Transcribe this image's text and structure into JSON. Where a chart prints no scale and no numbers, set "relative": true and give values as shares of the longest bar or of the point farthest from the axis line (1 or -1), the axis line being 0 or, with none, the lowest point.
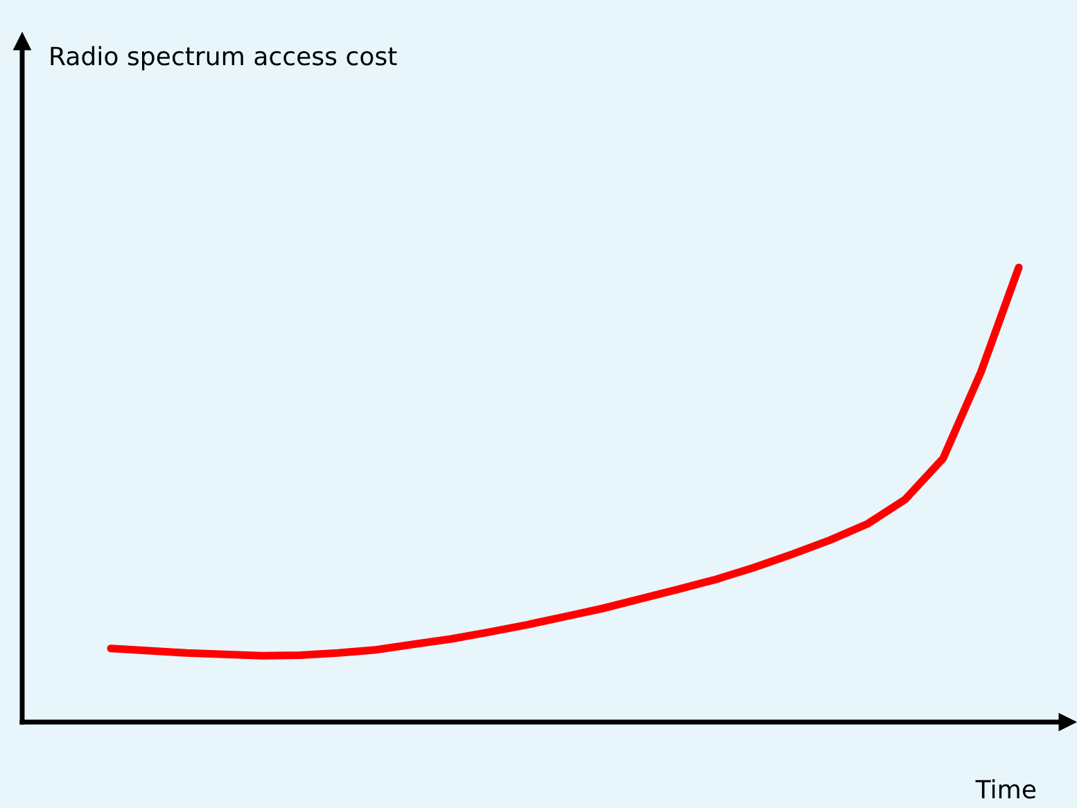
{
  "chart_data": {
    "type": "line",
    "relative": true,
    "xlabel": "Time",
    "annotations": [
      "Radio spectrum access cost"
    ],
    "categories": [
      null,
      null,
      null,
      null,
      null,
      null,
      null,
      null,
      null,
      null,
      null,
      null,
      null,
      null,
      null,
      null,
      null,
      null,
      null,
      null,
      null,
      null,
      null,
      null,
      null
    ],
    "series": [
      {
        "color": "#ff0000",
        "values": [
          0.162,
          0.157,
          0.152,
          0.149,
          0.146,
          0.147,
          0.152,
          0.159,
          0.171,
          0.183,
          0.198,
          0.214,
          0.232,
          0.25,
          0.271,
          0.292,
          0.314,
          0.34,
          0.369,
          0.4,
          0.436,
          0.49,
          0.58,
          0.77,
          1.0
        ]
      }
    ],
    "grid": false,
    "marker": "none",
    "line_style": "solid"
  }
}
